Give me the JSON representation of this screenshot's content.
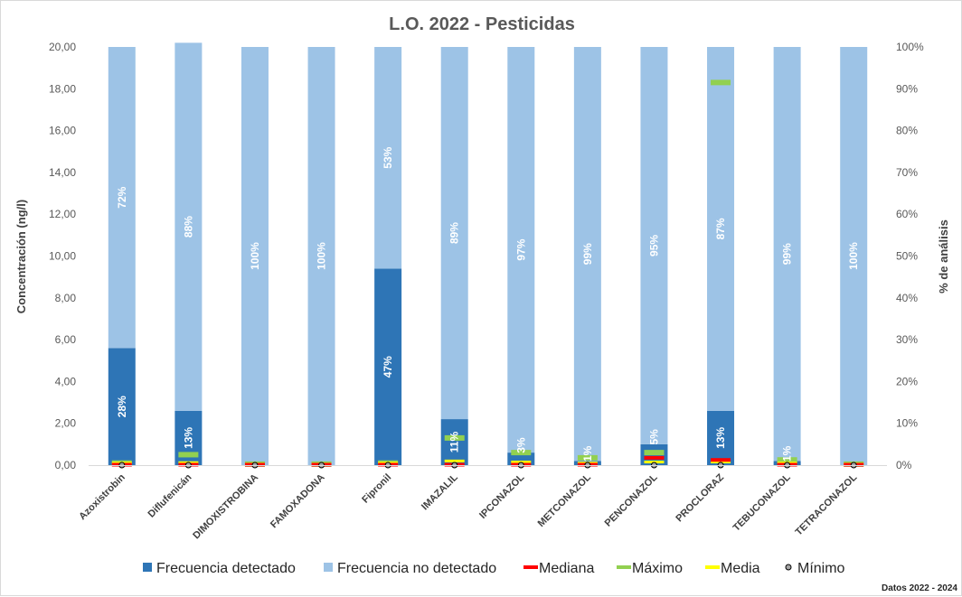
{
  "chart_data": {
    "type": "bar",
    "title": "L.O. 2022 - Pesticidas",
    "ylabel": "Concentración (ng/l)",
    "y2label": "% de análisis",
    "ylim": [
      0,
      20
    ],
    "y2lim": [
      0,
      100
    ],
    "yticks": [
      "0,00",
      "2,00",
      "4,00",
      "6,00",
      "8,00",
      "10,00",
      "12,00",
      "14,00",
      "16,00",
      "18,00",
      "20,00"
    ],
    "y2ticks": [
      "0%",
      "10%",
      "20%",
      "30%",
      "40%",
      "50%",
      "60%",
      "70%",
      "80%",
      "90%",
      "100%"
    ],
    "categories": [
      "Azoxistrobin",
      "Diflufenicán",
      "DIMOXISTROBINA",
      "FAMOXADONA",
      "Fipronil",
      "IMAZALIL",
      "IPCONAZOL",
      "METCONAZOL",
      "PENCONAZOL",
      "PROCLORAZ",
      "TEBUCONAZOL",
      "TETRACONAZOL"
    ],
    "series": [
      {
        "name": "Frecuencia detectado",
        "type": "stacked-bar",
        "axis": "secondary",
        "values": [
          28,
          13,
          0,
          0,
          47,
          11,
          3,
          1,
          5,
          13,
          1,
          0
        ],
        "labels": [
          "28%",
          "13%",
          "",
          "",
          "47%",
          "11%",
          "3%",
          "1%",
          "5%",
          "13%",
          "1%",
          ""
        ]
      },
      {
        "name": "Frecuencia no detectado",
        "type": "stacked-bar",
        "axis": "secondary",
        "values": [
          72,
          88,
          100,
          100,
          53,
          89,
          97,
          99,
          95,
          87,
          99,
          100
        ],
        "labels": [
          "72%",
          "88%",
          "100%",
          "100%",
          "53%",
          "89%",
          "97%",
          "99%",
          "95%",
          "87%",
          "99%",
          "100%"
        ]
      },
      {
        "name": "Mediana",
        "type": "marker",
        "axis": "primary",
        "values": [
          0.02,
          0.02,
          0.02,
          0.02,
          0.02,
          0.02,
          0.02,
          0.02,
          0.35,
          0.25,
          0.02,
          0.02
        ]
      },
      {
        "name": "Máximo",
        "type": "marker",
        "axis": "primary",
        "values": [
          0.1,
          0.5,
          0.05,
          0.05,
          0.1,
          1.3,
          0.6,
          0.35,
          0.6,
          18.3,
          0.25,
          0.05
        ]
      },
      {
        "name": "Media",
        "type": "marker",
        "axis": "primary",
        "values": [
          0.1,
          0.12,
          0.05,
          0.05,
          0.1,
          0.2,
          0.15,
          0.1,
          0.15,
          0.15,
          0.1,
          0.05
        ]
      },
      {
        "name": "Mínimo",
        "type": "marker",
        "axis": "primary",
        "values": [
          0.0,
          0.0,
          0.0,
          0.0,
          0.0,
          0.0,
          0.0,
          0.0,
          0.0,
          0.0,
          0.0,
          0.0
        ]
      }
    ],
    "legend_position": "bottom",
    "gridlines": false
  },
  "colors": {
    "detected": "#2e75b6",
    "not_detected": "#9dc3e6",
    "median": "#ff0000",
    "max": "#92d050",
    "mean": "#ffff00",
    "min_fill": "#a6a6a6",
    "min_stroke": "#000000"
  },
  "footnote": "Datos 2022 - 2024"
}
